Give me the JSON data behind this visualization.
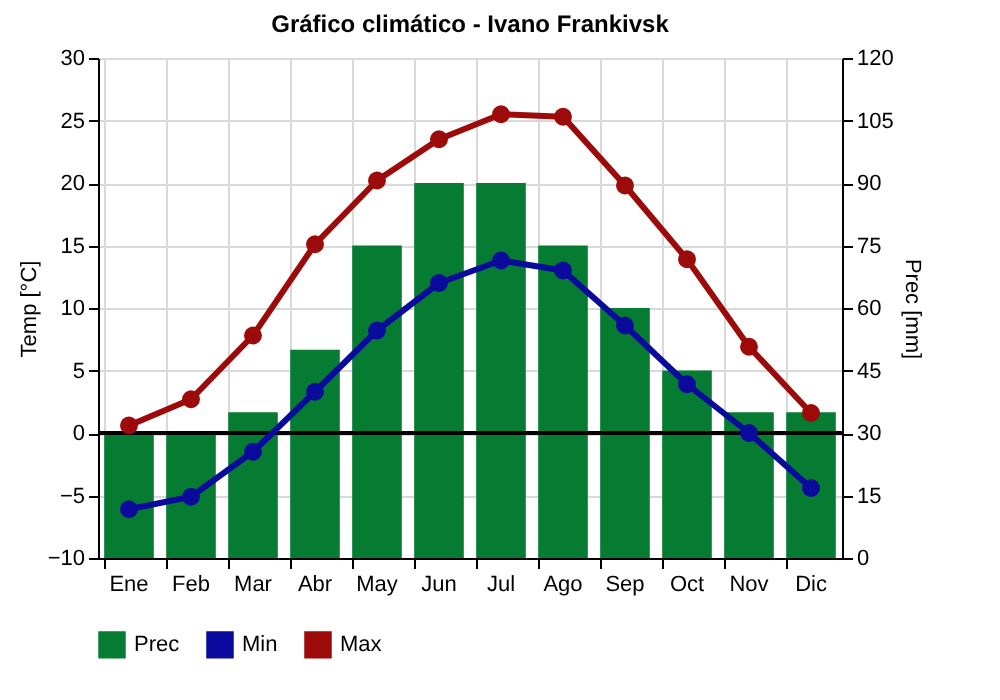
{
  "chart_data": {
    "type": "line",
    "title": "Gráfico climático - Ivano Frankivsk",
    "ylabel": "Temp [°C]",
    "y2label": "Prec [mm]",
    "categories": [
      "Ene",
      "Feb",
      "Mar",
      "Abr",
      "May",
      "Jun",
      "Jul",
      "Ago",
      "Sep",
      "Oct",
      "Nov",
      "Dic"
    ],
    "series": [
      {
        "name": "Prec",
        "type": "bar",
        "axis": "y2",
        "color": "#067c32",
        "values": [
          30,
          30,
          35,
          50,
          75,
          90,
          90,
          75,
          60,
          45,
          35,
          35
        ]
      },
      {
        "name": "Min",
        "color": "#0a0a9c",
        "values": [
          -6.1,
          -5.1,
          -1.5,
          3.3,
          8.2,
          12,
          13.8,
          13,
          8.6,
          3.9,
          0,
          -4.4
        ]
      },
      {
        "name": "Max",
        "color": "#9c0a0a",
        "values": [
          0.6,
          2.7,
          7.8,
          15.1,
          20.2,
          23.5,
          25.5,
          25.3,
          19.8,
          13.9,
          6.9,
          1.6
        ]
      }
    ],
    "ylim": [
      -10,
      30
    ],
    "yticks": [
      -10,
      -5,
      0,
      5,
      10,
      15,
      20,
      25,
      30
    ],
    "y2lim": [
      0,
      120
    ],
    "y2ticks": [
      0,
      15,
      30,
      45,
      60,
      75,
      90,
      105,
      120
    ],
    "ref_lines": [
      {
        "axis": "y",
        "value": 0,
        "color": "#000000"
      }
    ],
    "grid": true,
    "legend": "bottom",
    "marker": "circle",
    "line_style": "solid"
  }
}
